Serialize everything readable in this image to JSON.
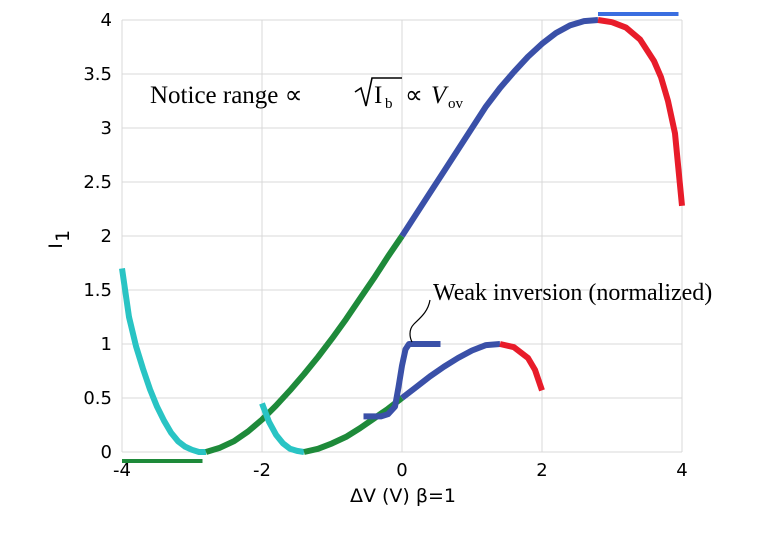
{
  "chart_data": {
    "type": "line",
    "xlabel": "ΔV (V) β=1",
    "ylabel": "I",
    "ylabel_sub": "1",
    "xlim": [
      -4,
      4
    ],
    "ylim": [
      0,
      4
    ],
    "x_ticks": [
      "-4",
      "-2",
      "0",
      "2",
      "4"
    ],
    "y_ticks": [
      "0",
      "0.5",
      "1",
      "1.5",
      "2",
      "2.5",
      "3",
      "3.5",
      "4"
    ],
    "grid": true,
    "annotations": {
      "notice_prefix": "Notice range  ∝",
      "notice_ib": "I",
      "notice_ib_sub": "b",
      "notice_prop": "∝",
      "notice_v": "V",
      "notice_v_sub": "ov",
      "weak_inversion": "Weak inversion (normalized)"
    },
    "colors": {
      "cyan": "#29c4c4",
      "green": "#1e8a3a",
      "blue": "#3a50a8",
      "red": "#e81c2a",
      "light_blue": "#3a6ee0"
    },
    "series": [
      {
        "key": "strong-cyan",
        "color": "#29c4c4",
        "x": [
          -4.0,
          -3.9,
          -3.8,
          -3.7,
          -3.6,
          -3.5,
          -3.4,
          -3.3,
          -3.2,
          -3.1,
          -3.0,
          -2.9,
          -2.8
        ],
        "y": [
          1.7,
          1.25,
          0.98,
          0.77,
          0.58,
          0.42,
          0.29,
          0.18,
          0.1,
          0.05,
          0.02,
          0.0,
          0.0
        ]
      },
      {
        "key": "strong-green",
        "color": "#1e8a3a",
        "x": [
          -2.8,
          -2.6,
          -2.4,
          -2.2,
          -2.0,
          -1.8,
          -1.6,
          -1.4,
          -1.2,
          -1.0,
          -0.8,
          -0.6,
          -0.4,
          -0.2,
          0.0
        ],
        "y": [
          0.0,
          0.04,
          0.1,
          0.19,
          0.3,
          0.43,
          0.57,
          0.72,
          0.88,
          1.05,
          1.23,
          1.42,
          1.61,
          1.81,
          2.0
        ]
      },
      {
        "key": "strong-blue",
        "color": "#3a50a8",
        "x": [
          0.0,
          0.2,
          0.4,
          0.6,
          0.8,
          1.0,
          1.2,
          1.4,
          1.6,
          1.8,
          2.0,
          2.2,
          2.4,
          2.6,
          2.8
        ],
        "y": [
          2.0,
          2.2,
          2.4,
          2.6,
          2.8,
          3.0,
          3.2,
          3.37,
          3.52,
          3.66,
          3.78,
          3.88,
          3.95,
          3.99,
          4.0
        ]
      },
      {
        "key": "strong-red",
        "color": "#e81c2a",
        "x": [
          2.8,
          3.0,
          3.2,
          3.4,
          3.6,
          3.7,
          3.8,
          3.9,
          4.0
        ],
        "y": [
          4.0,
          3.98,
          3.93,
          3.82,
          3.62,
          3.47,
          3.25,
          2.95,
          2.28
        ]
      },
      {
        "key": "weak-cyan",
        "color": "#29c4c4",
        "x": [
          -2.0,
          -1.9,
          -1.8,
          -1.7,
          -1.6,
          -1.5,
          -1.4
        ],
        "y": [
          0.45,
          0.28,
          0.16,
          0.08,
          0.03,
          0.01,
          0.0
        ]
      },
      {
        "key": "weak-green",
        "color": "#1e8a3a",
        "x": [
          -1.4,
          -1.2,
          -1.0,
          -0.8,
          -0.6,
          -0.4,
          -0.2,
          0.0
        ],
        "y": [
          0.0,
          0.03,
          0.08,
          0.14,
          0.22,
          0.31,
          0.4,
          0.5
        ]
      },
      {
        "key": "weak-blue",
        "color": "#3a50a8",
        "x": [
          0.0,
          0.2,
          0.4,
          0.6,
          0.8,
          1.0,
          1.2,
          1.4
        ],
        "y": [
          0.5,
          0.6,
          0.7,
          0.79,
          0.87,
          0.94,
          0.99,
          1.0
        ]
      },
      {
        "key": "weak-red",
        "color": "#e81c2a",
        "x": [
          1.4,
          1.6,
          1.8,
          1.9,
          2.0
        ],
        "y": [
          1.0,
          0.97,
          0.87,
          0.76,
          0.57
        ]
      },
      {
        "key": "tanh-step",
        "color": "#3a50a8",
        "x": [
          -0.55,
          -0.3,
          -0.2,
          -0.1,
          -0.05,
          0.0,
          0.05,
          0.1,
          0.2,
          0.55
        ],
        "y": [
          0.33,
          0.33,
          0.35,
          0.42,
          0.6,
          0.8,
          0.95,
          1.0,
          1.0,
          1.0
        ]
      }
    ],
    "range_markers": [
      {
        "key": "green-range",
        "color": "#1e8a3a",
        "x": [
          -4.0,
          -2.85
        ],
        "y": 0
      },
      {
        "key": "blue-range",
        "color": "#3a6ee0",
        "x": [
          2.8,
          3.95
        ],
        "y": 4
      }
    ]
  }
}
